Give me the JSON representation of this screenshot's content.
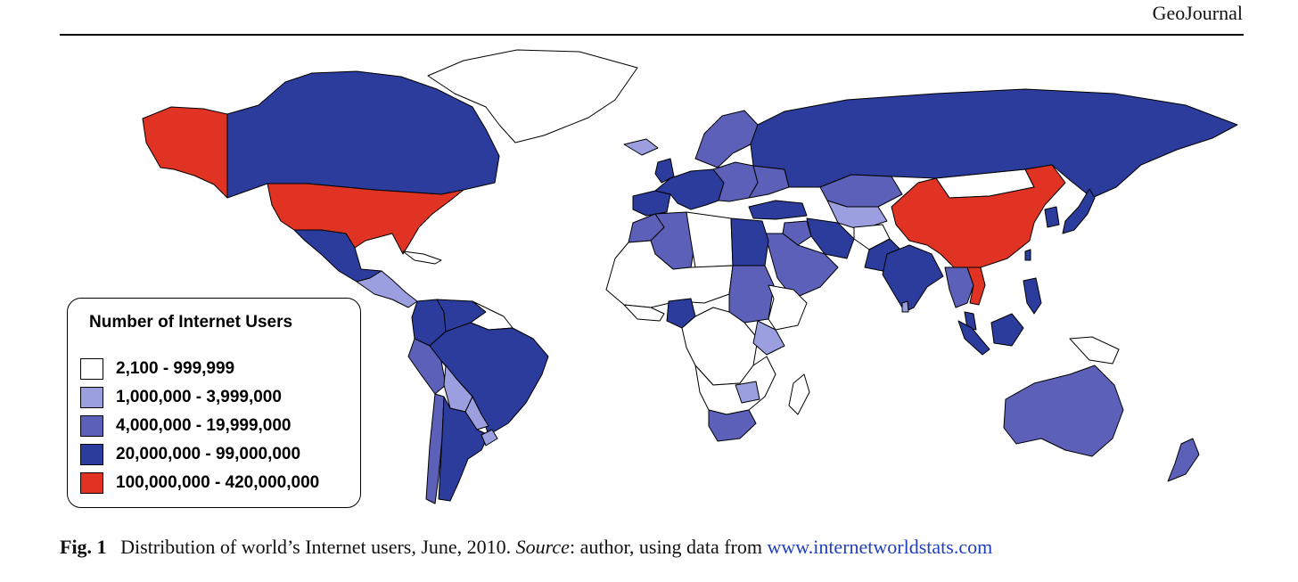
{
  "header": {
    "journal": "GeoJournal"
  },
  "legend": {
    "title": "Number of Internet Users",
    "items": [
      {
        "label": "2,100 - 999,999",
        "color": "#ffffff"
      },
      {
        "label": "1,000,000 - 3,999,000",
        "color": "#9b9fe0"
      },
      {
        "label": "4,000,000 - 19,999,000",
        "color": "#5c60b8"
      },
      {
        "label": "20,000,000 - 99,000,000",
        "color": "#2b3c9c"
      },
      {
        "label": "100,000,000 - 420,000,000",
        "color": "#e03324"
      }
    ]
  },
  "caption": {
    "fig_label": "Fig. 1",
    "text": "Distribution of world’s Internet users, June, 2010.",
    "source_label": "Source",
    "source_text": ": author, using data from",
    "link": "www.internetworldstats.com"
  },
  "map": {
    "regions": [
      {
        "name": "alaska",
        "class": 4
      },
      {
        "name": "canada",
        "class": 3
      },
      {
        "name": "greenland",
        "class": 0
      },
      {
        "name": "usa",
        "class": 4
      },
      {
        "name": "mexico",
        "class": 3
      },
      {
        "name": "central-america",
        "class": 1
      },
      {
        "name": "cuba",
        "class": 0
      },
      {
        "name": "colombia",
        "class": 3
      },
      {
        "name": "venezuela",
        "class": 3
      },
      {
        "name": "guianas",
        "class": 0
      },
      {
        "name": "brazil",
        "class": 3
      },
      {
        "name": "peru",
        "class": 2
      },
      {
        "name": "bolivia",
        "class": 1
      },
      {
        "name": "paraguay",
        "class": 1
      },
      {
        "name": "argentina",
        "class": 3
      },
      {
        "name": "chile",
        "class": 2
      },
      {
        "name": "uruguay",
        "class": 1
      },
      {
        "name": "iceland",
        "class": 1
      },
      {
        "name": "uk",
        "class": 3
      },
      {
        "name": "scandinavia",
        "class": 2
      },
      {
        "name": "western-europe",
        "class": 3
      },
      {
        "name": "iberia",
        "class": 3
      },
      {
        "name": "eastern-europe",
        "class": 2
      },
      {
        "name": "ukraine",
        "class": 2
      },
      {
        "name": "russia",
        "class": 3
      },
      {
        "name": "turkey",
        "class": 3
      },
      {
        "name": "kazakhstan",
        "class": 2
      },
      {
        "name": "central-asia",
        "class": 1
      },
      {
        "name": "iran",
        "class": 3
      },
      {
        "name": "pakistan",
        "class": 3
      },
      {
        "name": "afghanistan",
        "class": 0
      },
      {
        "name": "india",
        "class": 3
      },
      {
        "name": "mongolia",
        "class": 0
      },
      {
        "name": "china",
        "class": 4
      },
      {
        "name": "korea",
        "class": 3
      },
      {
        "name": "japan",
        "class": 3
      },
      {
        "name": "southeast-asia",
        "class": 2
      },
      {
        "name": "vietnam",
        "class": 4
      },
      {
        "name": "philippines",
        "class": 3
      },
      {
        "name": "malaysia",
        "class": 3
      },
      {
        "name": "sumatra",
        "class": 3
      },
      {
        "name": "borneo",
        "class": 3
      },
      {
        "name": "papua",
        "class": 0
      },
      {
        "name": "arabia",
        "class": 2
      },
      {
        "name": "iraq",
        "class": 2
      },
      {
        "name": "morocco",
        "class": 2
      },
      {
        "name": "algeria",
        "class": 2
      },
      {
        "name": "libya",
        "class": 0
      },
      {
        "name": "egypt",
        "class": 3
      },
      {
        "name": "sudan",
        "class": 2
      },
      {
        "name": "sahel",
        "class": 0
      },
      {
        "name": "west-africa",
        "class": 0
      },
      {
        "name": "nigeria",
        "class": 3
      },
      {
        "name": "central-africa",
        "class": 0
      },
      {
        "name": "ethiopia",
        "class": 0
      },
      {
        "name": "kenya",
        "class": 1
      },
      {
        "name": "southern-africa",
        "class": 0
      },
      {
        "name": "zimbabwe",
        "class": 1
      },
      {
        "name": "south-africa",
        "class": 2
      },
      {
        "name": "madagascar",
        "class": 0
      },
      {
        "name": "australia",
        "class": 2
      },
      {
        "name": "new-zealand",
        "class": 2
      },
      {
        "name": "sri-lanka",
        "class": 1
      },
      {
        "name": "taiwan",
        "class": 3
      }
    ]
  }
}
